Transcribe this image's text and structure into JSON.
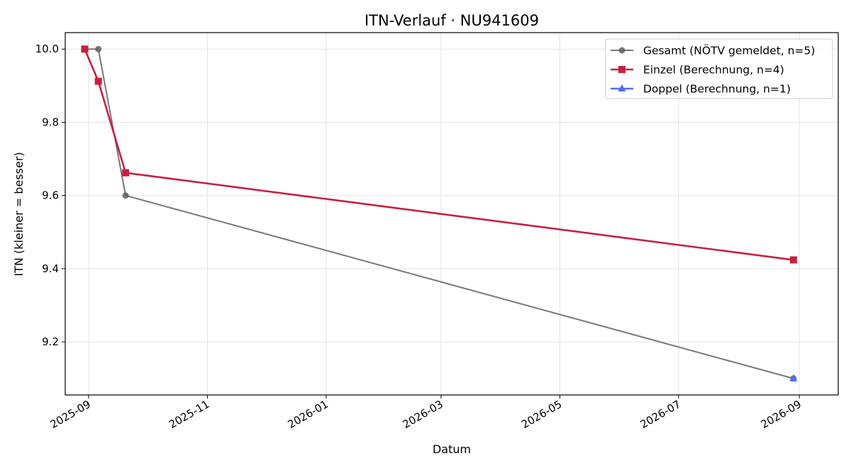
{
  "chart_data": {
    "type": "line",
    "title": "ITN-Verlauf · NU941609",
    "xlabel": "Datum",
    "ylabel": "ITN  (kleiner = besser)",
    "x_axis_type": "date",
    "xlim": [
      "2025-08-20",
      "2026-09-21"
    ],
    "ylim": [
      9.055,
      10.045
    ],
    "x_ticks": [
      "2025-09",
      "2025-11",
      "2026-01",
      "2026-03",
      "2026-05",
      "2026-07",
      "2026-09"
    ],
    "x_tick_dates": [
      "2025-09-01",
      "2025-11-01",
      "2026-01-01",
      "2026-03-01",
      "2026-05-01",
      "2026-07-01",
      "2026-09-01"
    ],
    "y_ticks": [
      "9.2",
      "9.4",
      "9.6",
      "9.8",
      "10.0"
    ],
    "y_tick_values": [
      9.2,
      9.4,
      9.6,
      9.8,
      10.0
    ],
    "grid": true,
    "legend_position": "top-right",
    "series": [
      {
        "name": "Gesamt (NÖTV gemeldet, n=5)",
        "color": "#606060",
        "marker": "circle",
        "points": [
          {
            "x": "2025-08-30",
            "y": 10.0
          },
          {
            "x": "2025-09-06",
            "y": 10.0
          },
          {
            "x": "2025-09-20",
            "y": 9.6
          },
          {
            "x": "2026-08-29",
            "y": 9.1
          }
        ]
      },
      {
        "name": "Einzel (Berechnung, n=4)",
        "color": "#c8203f",
        "marker": "square",
        "points": [
          {
            "x": "2025-08-30",
            "y": 10.0
          },
          {
            "x": "2025-09-06",
            "y": 9.912
          },
          {
            "x": "2025-09-20",
            "y": 9.662
          },
          {
            "x": "2026-08-29",
            "y": 9.424
          }
        ]
      },
      {
        "name": "Doppel (Berechnung, n=1)",
        "color": "#4f6ee8",
        "marker": "triangle",
        "points": [
          {
            "x": "2026-08-29",
            "y": 9.1
          }
        ]
      }
    ]
  }
}
